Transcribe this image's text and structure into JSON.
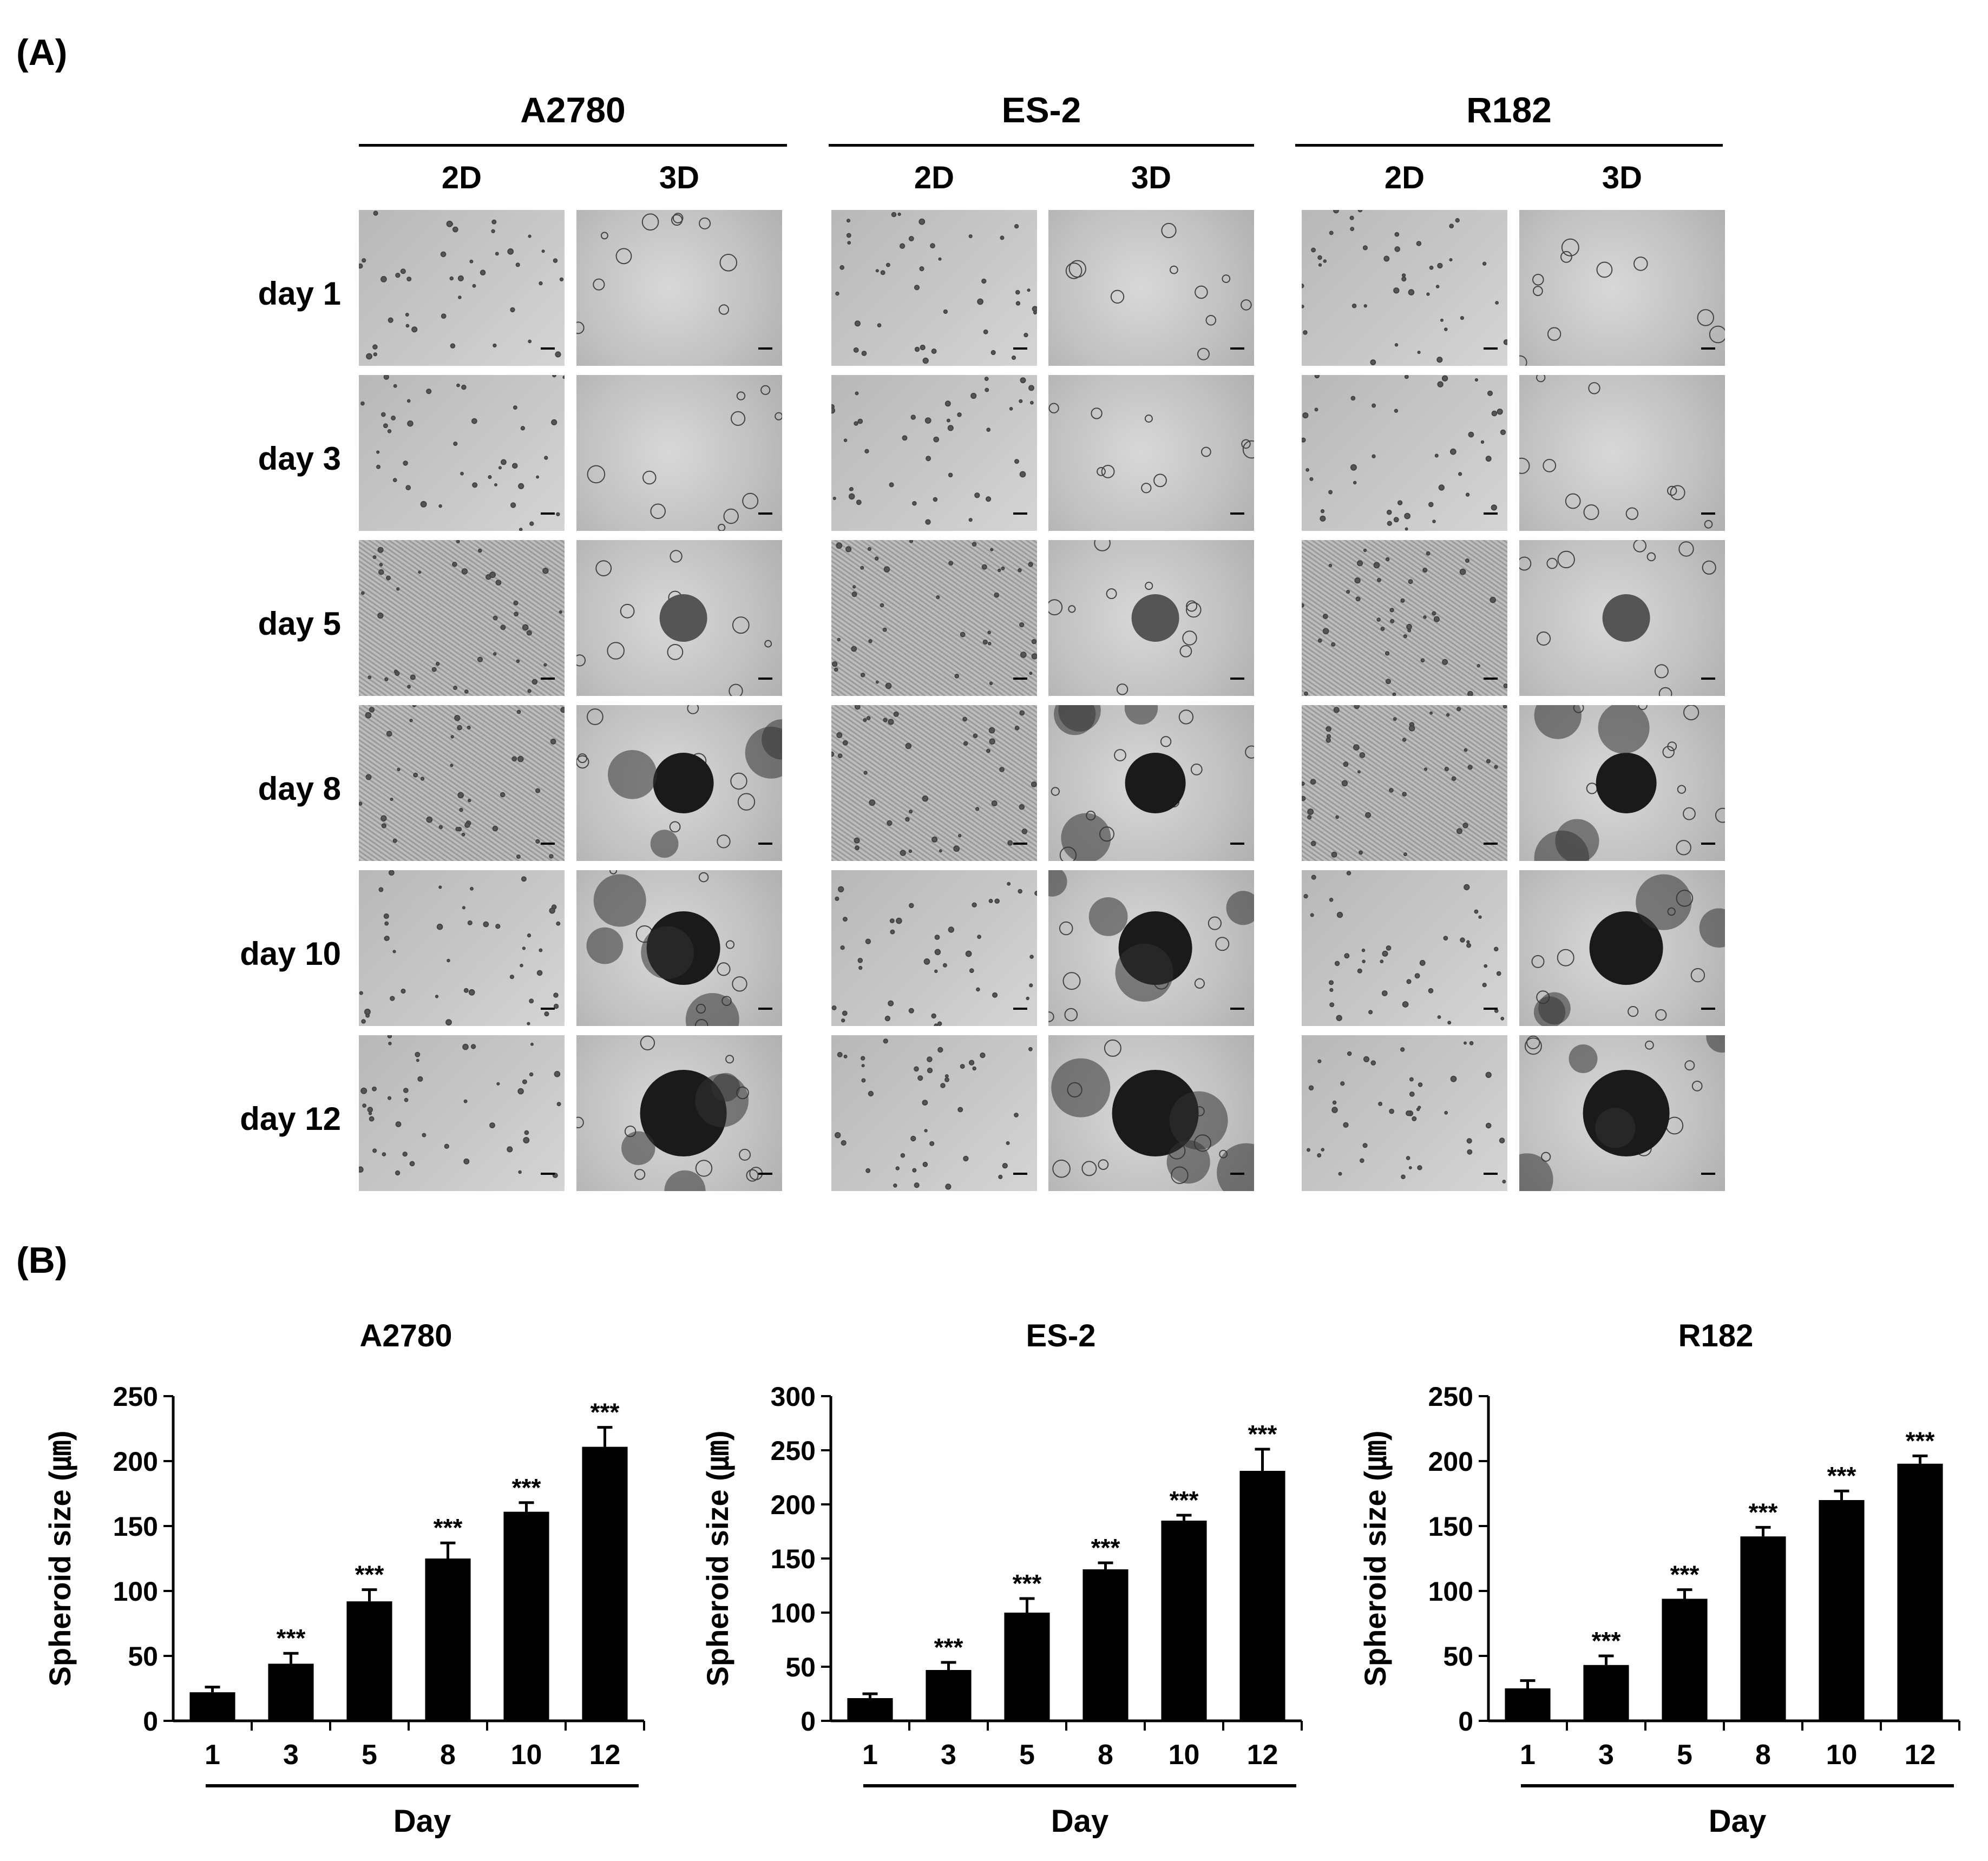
{
  "panel_a": {
    "label": "(A)",
    "cell_lines": [
      "A2780",
      "ES-2",
      "R182"
    ],
    "culture_types": [
      "2D",
      "3D"
    ],
    "days": [
      "day 1",
      "day 3",
      "day 5",
      "day 8",
      "day 10",
      "day 12"
    ]
  },
  "panel_b": {
    "label": "(B)"
  },
  "chart_data": [
    {
      "type": "bar",
      "title": "A2780",
      "categories": [
        "1",
        "3",
        "5",
        "8",
        "10",
        "12"
      ],
      "values": [
        22,
        44,
        92,
        125,
        161,
        211
      ],
      "errors": [
        4,
        8,
        9,
        12,
        7,
        15
      ],
      "annotations": [
        "",
        "***",
        "***",
        "***",
        "***",
        "***"
      ],
      "xlabel": "Day",
      "ylabel": "Spheroid size (㎛)",
      "ylim": [
        0,
        250
      ],
      "yticks": [
        0,
        50,
        100,
        150,
        200,
        250
      ],
      "grid": false,
      "bar_color": "#000000"
    },
    {
      "type": "bar",
      "title": "ES-2",
      "categories": [
        "1",
        "3",
        "5",
        "8",
        "10",
        "12"
      ],
      "values": [
        21,
        47,
        100,
        140,
        185,
        231
      ],
      "errors": [
        4,
        7,
        13,
        6,
        5,
        20
      ],
      "annotations": [
        "",
        "***",
        "***",
        "***",
        "***",
        "***"
      ],
      "xlabel": "Day",
      "ylabel": "Spheroid size (㎛)",
      "ylim": [
        0,
        300
      ],
      "yticks": [
        0,
        50,
        100,
        150,
        200,
        250,
        300
      ],
      "grid": false,
      "bar_color": "#000000"
    },
    {
      "type": "bar",
      "title": "R182",
      "categories": [
        "1",
        "3",
        "5",
        "8",
        "10",
        "12"
      ],
      "values": [
        25,
        43,
        94,
        142,
        170,
        198
      ],
      "errors": [
        6,
        7,
        7,
        7,
        7,
        6
      ],
      "annotations": [
        "",
        "***",
        "***",
        "***",
        "***",
        "***"
      ],
      "xlabel": "Day",
      "ylabel": "Spheroid size (㎛)",
      "ylim": [
        0,
        250
      ],
      "yticks": [
        0,
        50,
        100,
        150,
        200,
        250
      ],
      "grid": false,
      "bar_color": "#000000"
    }
  ]
}
